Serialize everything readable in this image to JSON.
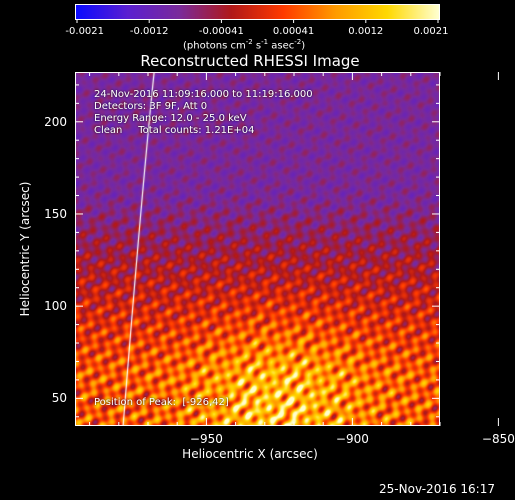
{
  "colorbar": {
    "tick_labels": [
      "-0.0021",
      "-0.0012",
      "-0.00041",
      "0.00041",
      "0.0012",
      "0.0021"
    ],
    "units_prefix": "(photons cm",
    "units_exp1": "-2",
    "units_mid1": " s",
    "units_exp2": "-1",
    "units_mid2": " asec",
    "units_exp3": "-2",
    "units_suffix": ")",
    "colors": [
      "#0a0aff",
      "#5a1fd0",
      "#7a2a9a",
      "#b01818",
      "#ff3a00",
      "#ff9a00",
      "#ffd800",
      "#ffffd0"
    ]
  },
  "plot": {
    "title": "Reconstructed RHESSI Image",
    "info": [
      "24-Nov-2016 11:09:16.000 to 11:19:16.000",
      "Detectors: 3F 9F, Att 0",
      "Energy Range: 12.0 - 25.0 keV",
      "Clean     Total counts: 1.21E+04"
    ],
    "peak_label": "Position of Peak:  [-926,42]"
  },
  "chart_data": {
    "type": "heatmap",
    "title": "Reconstructed RHESSI Image",
    "xlabel": "Heliocentric X (arcsec)",
    "ylabel": "Heliocentric Y (arcsec)",
    "xlim": [
      -995,
      -870
    ],
    "ylim": [
      35,
      227
    ],
    "x_ticks": [
      -950,
      -900,
      -850
    ],
    "y_ticks": [
      50,
      100,
      150,
      200
    ],
    "colorbar_range": [
      -0.0021,
      0.0021
    ],
    "peak_position": [
      -926,
      42
    ],
    "colormap": "blue-purple-red-yellow-white",
    "limb_line": "white curve near x = -960"
  },
  "axes": {
    "x_tick_labels": [
      "−950",
      "−900",
      "−850"
    ],
    "y_tick_labels": [
      "50",
      "100",
      "150",
      "200"
    ],
    "xlabel": "Heliocentric X (arcsec)",
    "ylabel": "Heliocentric Y (arcsec)"
  },
  "footer": {
    "timestamp": "25-Nov-2016 16:17"
  }
}
